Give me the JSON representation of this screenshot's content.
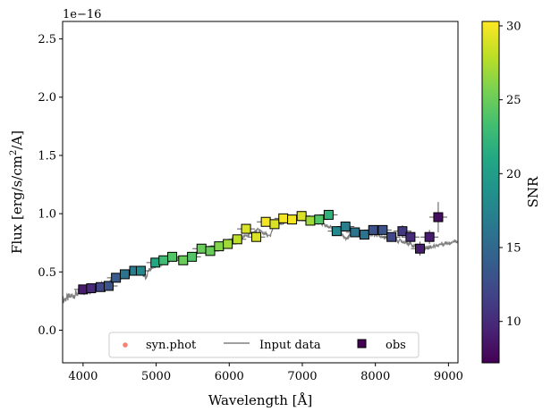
{
  "chart_data": {
    "type": "scatter",
    "xlabel": "Wavelength [Å]",
    "ylabel_base": "Flux [erg/s/cm",
    "ylabel_exp": "2",
    "ylabel_tail": "/A]",
    "offset_text": "1e−16",
    "colorbar_label": "SNR",
    "xlim": [
      3720,
      9130
    ],
    "ylim": [
      -0.28,
      2.65
    ],
    "x_ticks": [
      4000,
      5000,
      6000,
      7000,
      8000,
      9000
    ],
    "x_tick_labels": [
      "4000",
      "5000",
      "6000",
      "7000",
      "8000",
      "9000"
    ],
    "y_ticks": [
      0.0,
      0.5,
      1.0,
      1.5,
      2.0,
      2.5
    ],
    "y_tick_labels": [
      "0.0",
      "0.5",
      "1.0",
      "1.5",
      "2.0",
      "2.5"
    ],
    "colorbar_range": [
      7.2,
      30.3
    ],
    "colorbar_ticks": [
      10,
      15,
      20,
      25,
      30
    ],
    "colorbar_tick_labels": [
      "10",
      "15",
      "20",
      "25",
      "30"
    ],
    "colormap": "viridis",
    "legend": {
      "placement": "lower center",
      "entries": [
        {
          "label": "syn.phot",
          "kind": "dot",
          "color": "#fa8072"
        },
        {
          "label": "Input data",
          "kind": "line",
          "color": "#808080"
        },
        {
          "label": "obs",
          "kind": "square",
          "color": "#440154"
        }
      ]
    },
    "series": [
      {
        "name": "Input data",
        "color": "#808080",
        "x": [
          3720,
          3800,
          3900,
          4000,
          4100,
          4200,
          4300,
          4400,
          4500,
          4600,
          4700,
          4800,
          4861,
          4900,
          5000,
          5100,
          5200,
          5300,
          5400,
          5500,
          5600,
          5700,
          5800,
          5900,
          6000,
          6100,
          6200,
          6300,
          6400,
          6563,
          6600,
          6700,
          6800,
          6900,
          7000,
          7100,
          7200,
          7300,
          7400,
          7500,
          7600,
          7700,
          7800,
          7900,
          8000,
          8100,
          8200,
          8300,
          8400,
          8500,
          8600,
          8700,
          8800,
          8900,
          9000,
          9130
        ],
        "y": [
          0.26,
          0.28,
          0.31,
          0.33,
          0.35,
          0.37,
          0.39,
          0.42,
          0.45,
          0.47,
          0.49,
          0.5,
          0.45,
          0.52,
          0.55,
          0.58,
          0.6,
          0.61,
          0.62,
          0.65,
          0.67,
          0.7,
          0.72,
          0.74,
          0.76,
          0.79,
          0.8,
          0.83,
          0.86,
          0.8,
          0.89,
          0.92,
          0.93,
          0.95,
          0.96,
          0.94,
          0.93,
          0.9,
          0.88,
          0.86,
          0.78,
          0.84,
          0.83,
          0.82,
          0.82,
          0.8,
          0.79,
          0.77,
          0.76,
          0.73,
          0.71,
          0.71,
          0.72,
          0.74,
          0.75,
          0.77
        ]
      },
      {
        "name": "obs",
        "x": [
          4000,
          4110,
          4240,
          4350,
          4450,
          4570,
          4700,
          4790,
          4990,
          5100,
          5220,
          5370,
          5490,
          5620,
          5740,
          5860,
          5980,
          6110,
          6230,
          6370,
          6500,
          6620,
          6740,
          6860,
          6990,
          7110,
          7230,
          7360,
          7470,
          7590,
          7720,
          7850,
          7970,
          8100,
          8220,
          8370,
          8480,
          8610,
          8740,
          8860
        ],
        "y": [
          0.35,
          0.36,
          0.37,
          0.38,
          0.45,
          0.48,
          0.51,
          0.51,
          0.58,
          0.6,
          0.63,
          0.6,
          0.63,
          0.7,
          0.68,
          0.72,
          0.74,
          0.78,
          0.87,
          0.8,
          0.93,
          0.91,
          0.96,
          0.95,
          0.98,
          0.94,
          0.95,
          0.99,
          0.85,
          0.89,
          0.84,
          0.82,
          0.86,
          0.86,
          0.8,
          0.85,
          0.8,
          0.7,
          0.8,
          0.97
        ],
        "yerr": [
          0.03,
          0.03,
          0.03,
          0.03,
          0.03,
          0.03,
          0.03,
          0.03,
          0.03,
          0.03,
          0.03,
          0.03,
          0.03,
          0.03,
          0.03,
          0.03,
          0.03,
          0.03,
          0.03,
          0.03,
          0.03,
          0.03,
          0.03,
          0.03,
          0.03,
          0.03,
          0.03,
          0.03,
          0.03,
          0.03,
          0.03,
          0.03,
          0.04,
          0.04,
          0.04,
          0.05,
          0.05,
          0.06,
          0.06,
          0.13
        ],
        "snr": [
          9,
          10,
          12,
          13,
          14,
          16,
          17,
          18,
          21,
          23,
          24,
          25,
          24,
          25,
          25,
          26,
          27,
          28,
          29,
          29,
          30,
          29,
          30,
          30,
          29,
          27,
          24,
          22,
          18,
          17,
          16,
          16,
          13,
          13,
          12,
          11,
          10,
          9,
          9,
          8
        ]
      }
    ]
  }
}
